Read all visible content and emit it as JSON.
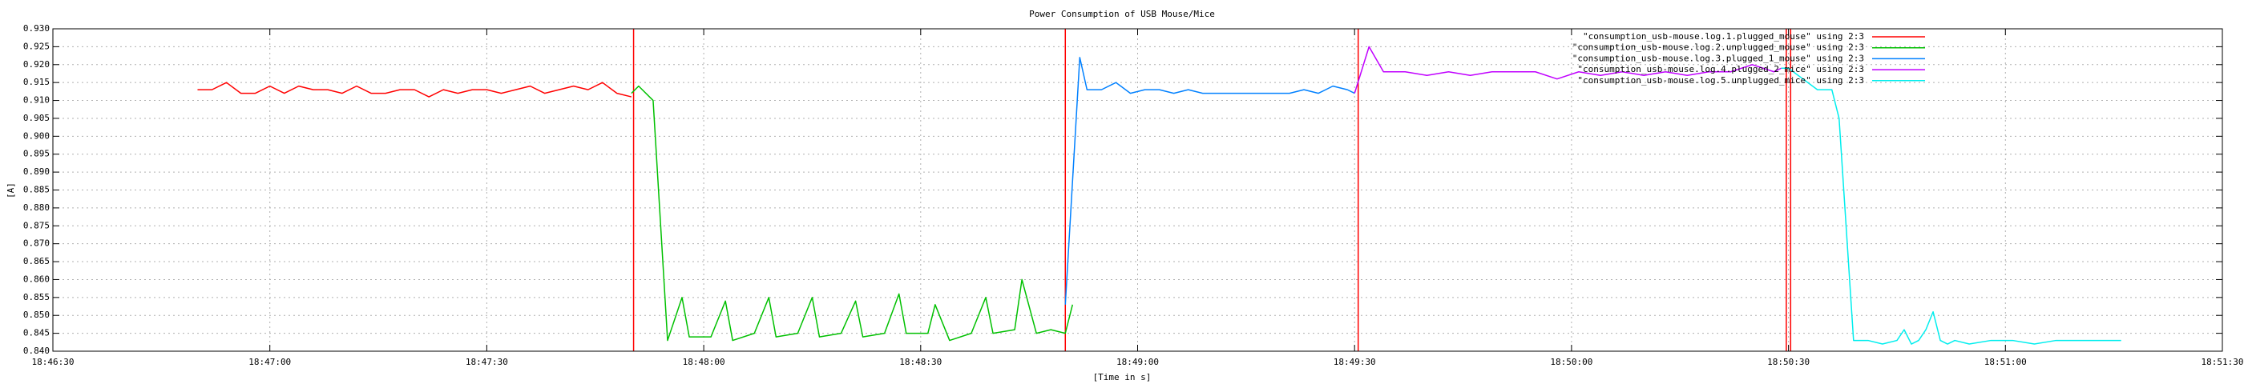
{
  "chart_data": {
    "type": "line",
    "title": "Power Consumption of USB Mouse/Mice",
    "x_label": "[Time in s]",
    "y_label": "[A]",
    "xlim": [
      67590,
      67890
    ],
    "xticks": [
      {
        "value": 67590,
        "label": "18:46:30"
      },
      {
        "value": 67620,
        "label": "18:47:00"
      },
      {
        "value": 67650,
        "label": "18:47:30"
      },
      {
        "value": 67680,
        "label": "18:48:00"
      },
      {
        "value": 67710,
        "label": "18:48:30"
      },
      {
        "value": 67740,
        "label": "18:49:00"
      },
      {
        "value": 67770,
        "label": "18:49:30"
      },
      {
        "value": 67800,
        "label": "18:50:00"
      },
      {
        "value": 67830,
        "label": "18:50:30"
      },
      {
        "value": 67860,
        "label": "18:51:00"
      },
      {
        "value": 67890,
        "label": "18:51:30"
      }
    ],
    "ylim": [
      0.84,
      0.93
    ],
    "yticks": [
      {
        "value": 0.84,
        "label": "0.840"
      },
      {
        "value": 0.845,
        "label": "0.845"
      },
      {
        "value": 0.85,
        "label": "0.850"
      },
      {
        "value": 0.855,
        "label": "0.855"
      },
      {
        "value": 0.86,
        "label": "0.860"
      },
      {
        "value": 0.865,
        "label": "0.865"
      },
      {
        "value": 0.87,
        "label": "0.870"
      },
      {
        "value": 0.875,
        "label": "0.875"
      },
      {
        "value": 0.88,
        "label": "0.880"
      },
      {
        "value": 0.885,
        "label": "0.885"
      },
      {
        "value": 0.89,
        "label": "0.890"
      },
      {
        "value": 0.895,
        "label": "0.895"
      },
      {
        "value": 0.9,
        "label": "0.900"
      },
      {
        "value": 0.905,
        "label": "0.905"
      },
      {
        "value": 0.91,
        "label": "0.910"
      },
      {
        "value": 0.915,
        "label": "0.915"
      },
      {
        "value": 0.92,
        "label": "0.920"
      },
      {
        "value": 0.925,
        "label": "0.925"
      },
      {
        "value": 0.93,
        "label": "0.930"
      }
    ],
    "grid": true,
    "legend": "top-right",
    "vertical_lines": [
      67670.3,
      67730,
      67770.5,
      67829.7,
      67830.3
    ],
    "vertical_line_color": "#ff0000",
    "series": [
      {
        "name": "\"consumption_usb-mouse.log.1.plugged_mouse\" using 2:3",
        "color": "#ff0000",
        "x": [
          67610,
          67612,
          67614,
          67616,
          67618,
          67620,
          67622,
          67624,
          67626,
          67628,
          67630,
          67632,
          67634,
          67636,
          67638,
          67640,
          67642,
          67644,
          67646,
          67648,
          67650,
          67652,
          67654,
          67656,
          67658,
          67660,
          67662,
          67664,
          67666,
          67668,
          67670
        ],
        "values": [
          0.913,
          0.913,
          0.915,
          0.912,
          0.912,
          0.914,
          0.912,
          0.914,
          0.913,
          0.913,
          0.912,
          0.914,
          0.912,
          0.912,
          0.913,
          0.913,
          0.911,
          0.913,
          0.912,
          0.913,
          0.913,
          0.912,
          0.913,
          0.914,
          0.912,
          0.913,
          0.914,
          0.913,
          0.915,
          0.912,
          0.911
        ]
      },
      {
        "name": "\"consumption_usb-mouse.log.2.unplugged_mouse\" using 2:3",
        "color": "#00c000",
        "x": [
          67670,
          67671,
          67673,
          67675,
          67677,
          67678,
          67681,
          67683,
          67684,
          67687,
          67689,
          67690,
          67693,
          67695,
          67696,
          67699,
          67701,
          67702,
          67705,
          67707,
          67708,
          67711,
          67712,
          67714,
          67717,
          67719,
          67720,
          67723,
          67724,
          67726,
          67728,
          67730,
          67731
        ],
        "values": [
          0.912,
          0.914,
          0.91,
          0.843,
          0.855,
          0.844,
          0.844,
          0.854,
          0.843,
          0.845,
          0.855,
          0.844,
          0.845,
          0.855,
          0.844,
          0.845,
          0.854,
          0.844,
          0.845,
          0.856,
          0.845,
          0.845,
          0.853,
          0.843,
          0.845,
          0.855,
          0.845,
          0.846,
          0.86,
          0.845,
          0.846,
          0.845,
          0.853
        ]
      },
      {
        "name": "\"consumption_usb-mouse.log.3.plugged_1_mouse\" using 2:3",
        "color": "#0080ff",
        "x": [
          67730,
          67732,
          67733,
          67735,
          67737,
          67739,
          67741,
          67743,
          67745,
          67747,
          67749,
          67751,
          67753,
          67755,
          67757,
          67759,
          67761,
          67763,
          67765,
          67767,
          67769,
          67770
        ],
        "values": [
          0.853,
          0.922,
          0.913,
          0.913,
          0.915,
          0.912,
          0.913,
          0.913,
          0.912,
          0.913,
          0.912,
          0.912,
          0.912,
          0.912,
          0.912,
          0.912,
          0.912,
          0.913,
          0.912,
          0.914,
          0.913,
          0.912
        ]
      },
      {
        "name": "\"consumption_usb-mouse.log.4.plugged_2_mice\" using 2:3",
        "color": "#c000ff",
        "x": [
          67770,
          67772,
          67774,
          67777,
          67780,
          67783,
          67786,
          67789,
          67792,
          67795,
          67798,
          67801,
          67804,
          67807,
          67810,
          67813,
          67816,
          67819,
          67822,
          67825,
          67828,
          67829
        ],
        "values": [
          0.912,
          0.925,
          0.918,
          0.918,
          0.917,
          0.918,
          0.917,
          0.918,
          0.918,
          0.918,
          0.916,
          0.918,
          0.917,
          0.918,
          0.917,
          0.918,
          0.917,
          0.918,
          0.918,
          0.92,
          0.918,
          0.919
        ]
      },
      {
        "name": "\"consumption_usb-mouse.log.5.unplugged_mice\" using 2:3",
        "color": "#00eeee",
        "x": [
          67829,
          67830,
          67832,
          67834,
          67836,
          67837,
          67839,
          67841,
          67843,
          67845,
          67846,
          67847,
          67848,
          67849,
          67850,
          67851,
          67852,
          67853,
          67855,
          67858,
          67861,
          67864,
          67867,
          67870,
          67873,
          67876
        ],
        "values": [
          0.919,
          0.919,
          0.916,
          0.913,
          0.913,
          0.905,
          0.843,
          0.843,
          0.842,
          0.843,
          0.846,
          0.842,
          0.843,
          0.846,
          0.851,
          0.843,
          0.842,
          0.843,
          0.842,
          0.843,
          0.843,
          0.842,
          0.843,
          0.843,
          0.843,
          0.843
        ]
      }
    ]
  }
}
